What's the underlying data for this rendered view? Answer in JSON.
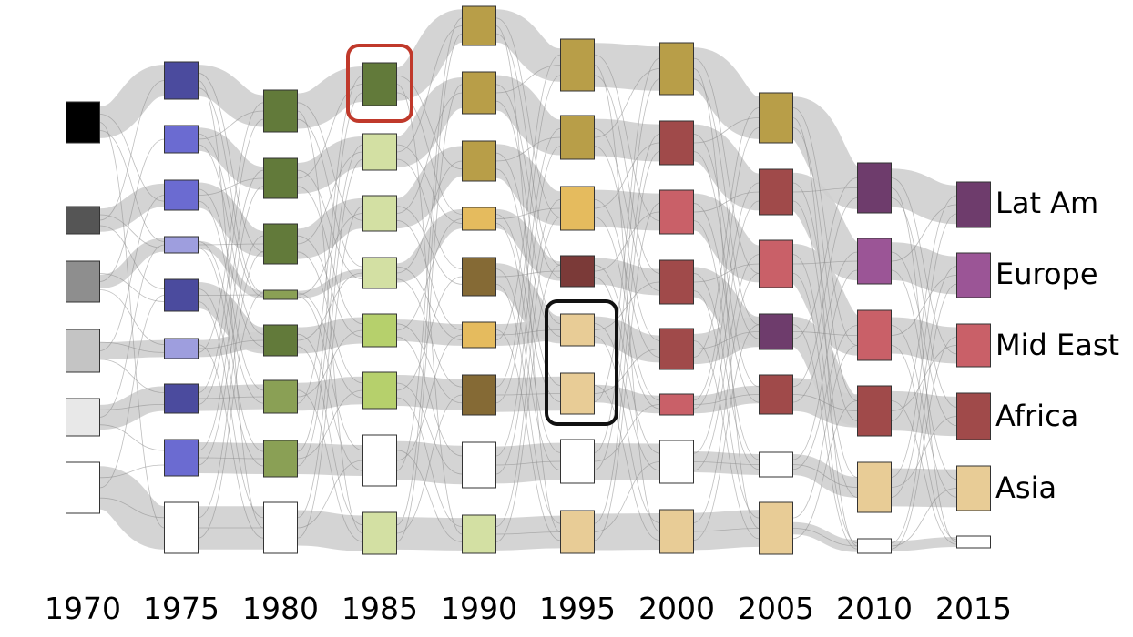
{
  "axis": {
    "years": [
      "1970",
      "1975",
      "1980",
      "1985",
      "1990",
      "1995",
      "2000",
      "2005",
      "2010",
      "2015"
    ]
  },
  "legend": {
    "labels": [
      "Lat Am",
      "Europe",
      "Mid East",
      "Africa",
      "Asia"
    ]
  }
}
